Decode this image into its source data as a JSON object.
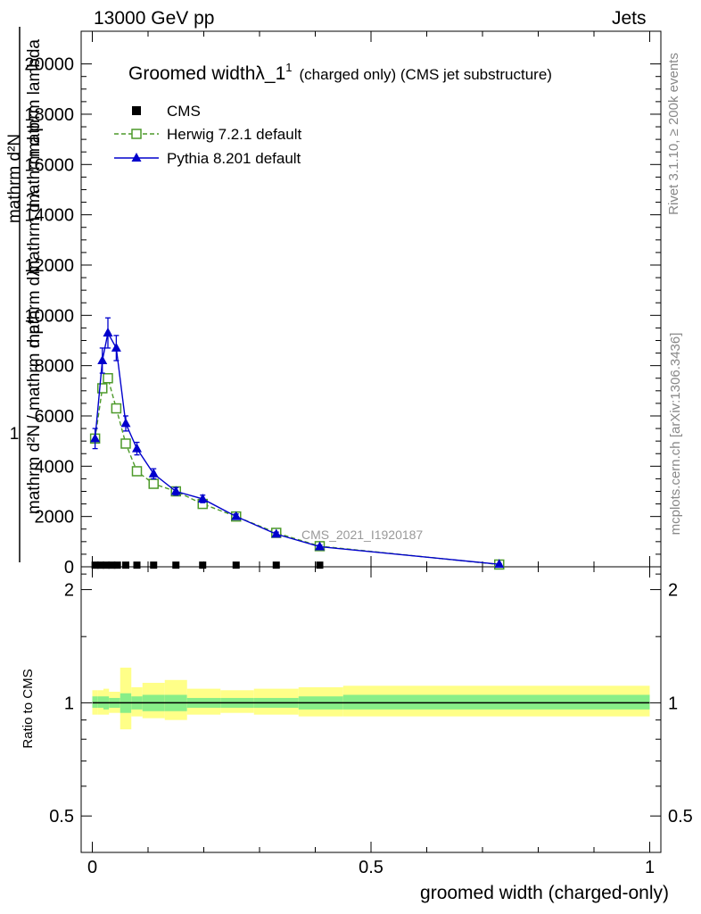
{
  "header": {
    "left": "13000 GeV pp",
    "right": "Jets"
  },
  "side_labels": {
    "rivet": "Rivet 3.1.10, ≥ 200k events",
    "mcplots": "mcplots.cern.ch [arXiv:1306.3436]"
  },
  "chart_data": [
    {
      "type": "line",
      "title": "Groomed widthλ_1",
      "title_sup": "1",
      "title_suffix": "(charged only) (CMS jet substructure)",
      "ylabel_parts": [
        "1",
        "mathrm d²N / mathrm d p",
        "mathrm d²N",
        "mathrm d p",
        "mathrm d λ",
        "mathrm dλ",
        "mathrm lambda"
      ],
      "xlabel": "groomed width (charged-only)",
      "xlim": [
        -0.02,
        1.02
      ],
      "ylim": [
        0,
        21300
      ],
      "y_ticks": [
        0,
        2000,
        4000,
        6000,
        8000,
        10000,
        12000,
        14000,
        16000,
        18000,
        20000
      ],
      "y_tick_labels": [
        "0",
        "2000",
        "4000",
        "6000",
        "8000",
        "10000",
        "12000",
        "14000",
        "16000",
        "18000",
        "20000"
      ],
      "watermark": "CMS_2021_I1920187",
      "legend_position": "top-left",
      "series": [
        {
          "name": "CMS",
          "color": "#000000",
          "marker": "square-filled",
          "x": [
            0.005,
            0.015,
            0.025,
            0.035,
            0.045,
            0.06,
            0.08,
            0.11,
            0.15,
            0.198,
            0.258,
            0.33,
            0.408,
            0.73
          ],
          "y": [
            30,
            30,
            30,
            30,
            30,
            30,
            30,
            30,
            30,
            30,
            30,
            30,
            30,
            30
          ]
        },
        {
          "name": "Herwig 7.2.1 default",
          "color": "#4d9a2a",
          "marker": "square-open",
          "line": "dashed",
          "x": [
            0.005,
            0.018,
            0.028,
            0.043,
            0.06,
            0.08,
            0.11,
            0.15,
            0.198,
            0.258,
            0.33,
            0.408,
            0.73
          ],
          "y": [
            5100,
            7100,
            7500,
            6300,
            4900,
            3800,
            3300,
            3000,
            2500,
            2000,
            1350,
            820,
            90
          ]
        },
        {
          "name": "Pythia 8.201 default",
          "color": "#0000cc",
          "marker": "triangle-filled",
          "line": "solid",
          "x": [
            0.005,
            0.018,
            0.028,
            0.043,
            0.06,
            0.08,
            0.11,
            0.15,
            0.198,
            0.258,
            0.33,
            0.408,
            0.73
          ],
          "y": [
            5100,
            8200,
            9300,
            8700,
            5700,
            4700,
            3700,
            3000,
            2700,
            2000,
            1300,
            800,
            100
          ],
          "yerr": [
            400,
            500,
            600,
            500,
            300,
            250,
            200,
            150,
            150,
            100,
            80,
            60,
            20
          ]
        }
      ]
    },
    {
      "type": "area",
      "ylabel": "Ratio to CMS",
      "xlim": [
        -0.02,
        1.02
      ],
      "ylim": [
        0.4,
        2.3
      ],
      "y_scale": "log",
      "y_ticks": [
        0.5,
        1,
        2
      ],
      "y_tick_labels": [
        "0.5",
        "1",
        "2"
      ],
      "x_ticks": [
        0,
        0.5,
        1
      ],
      "x_tick_labels": [
        "0",
        "0.5",
        "1"
      ],
      "reference_line": 1,
      "bands": {
        "yellow_color": "#ffff88",
        "green_color": "#88ee88",
        "bins": [
          {
            "lo": 0.0,
            "hi": 0.01,
            "y_lo": 0.93,
            "y_hi": 1.08,
            "g_lo": 0.97,
            "g_hi": 1.04
          },
          {
            "lo": 0.01,
            "hi": 0.02,
            "y_lo": 0.93,
            "y_hi": 1.08,
            "g_lo": 0.97,
            "g_hi": 1.04
          },
          {
            "lo": 0.02,
            "hi": 0.03,
            "y_lo": 0.93,
            "y_hi": 1.09,
            "g_lo": 0.96,
            "g_hi": 1.04
          },
          {
            "lo": 0.03,
            "hi": 0.05,
            "y_lo": 0.94,
            "y_hi": 1.07,
            "g_lo": 0.97,
            "g_hi": 1.03
          },
          {
            "lo": 0.05,
            "hi": 0.07,
            "y_lo": 0.85,
            "y_hi": 1.24,
            "g_lo": 0.94,
            "g_hi": 1.06
          },
          {
            "lo": 0.07,
            "hi": 0.09,
            "y_lo": 0.92,
            "y_hi": 1.1,
            "g_lo": 0.96,
            "g_hi": 1.04
          },
          {
            "lo": 0.09,
            "hi": 0.13,
            "y_lo": 0.91,
            "y_hi": 1.13,
            "g_lo": 0.95,
            "g_hi": 1.05
          },
          {
            "lo": 0.13,
            "hi": 0.17,
            "y_lo": 0.9,
            "y_hi": 1.15,
            "g_lo": 0.95,
            "g_hi": 1.05
          },
          {
            "lo": 0.17,
            "hi": 0.23,
            "y_lo": 0.93,
            "y_hi": 1.09,
            "g_lo": 0.97,
            "g_hi": 1.03
          },
          {
            "lo": 0.23,
            "hi": 0.29,
            "y_lo": 0.94,
            "y_hi": 1.08,
            "g_lo": 0.97,
            "g_hi": 1.03
          },
          {
            "lo": 0.29,
            "hi": 0.37,
            "y_lo": 0.93,
            "y_hi": 1.09,
            "g_lo": 0.97,
            "g_hi": 1.03
          },
          {
            "lo": 0.37,
            "hi": 0.45,
            "y_lo": 0.92,
            "y_hi": 1.1,
            "g_lo": 0.96,
            "g_hi": 1.04
          },
          {
            "lo": 0.45,
            "hi": 1.0,
            "y_lo": 0.92,
            "y_hi": 1.11,
            "g_lo": 0.96,
            "g_hi": 1.05
          }
        ]
      }
    }
  ]
}
